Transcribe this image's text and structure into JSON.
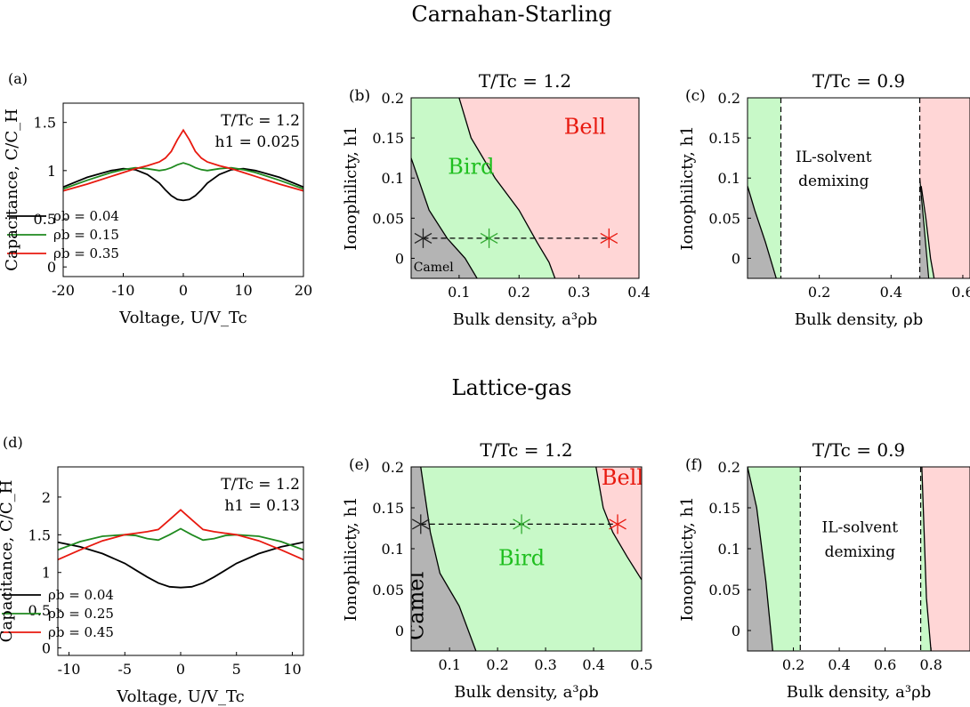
{
  "rows": [
    {
      "title": "Carnahan-Starling"
    },
    {
      "title": "Lattice-gas"
    }
  ],
  "chart_data": [
    {
      "panel": "(a)",
      "type": "line",
      "title": "",
      "xlabel": "Voltage, U/V_Tc",
      "ylabel": "Capacitance, C/C_H",
      "xlim": [
        -20,
        20
      ],
      "ylim": [
        -0.1,
        1.7
      ],
      "xticks": [
        -20,
        -10,
        0,
        10,
        20
      ],
      "yticks": [
        0,
        0.5,
        1,
        1.5
      ],
      "annotations": [
        "T/Tc = 1.2",
        "h1 = 0.025"
      ],
      "legend_position": "lower-left",
      "x": [
        -20,
        -16,
        -12,
        -10,
        -8,
        -6,
        -4,
        -3,
        -2,
        -1,
        0,
        1,
        2,
        3,
        4,
        6,
        8,
        10,
        12,
        16,
        20
      ],
      "series": [
        {
          "name": "ρb = 0.04",
          "color": "#000000",
          "values": [
            0.83,
            0.93,
            1.0,
            1.02,
            1.01,
            0.96,
            0.87,
            0.8,
            0.74,
            0.7,
            0.69,
            0.7,
            0.74,
            0.8,
            0.87,
            0.96,
            1.01,
            1.02,
            1.0,
            0.93,
            0.83
          ]
        },
        {
          "name": "ρb = 0.15",
          "color": "#1f8a1f",
          "values": [
            0.81,
            0.9,
            0.98,
            1.01,
            1.03,
            1.02,
            1.0,
            1.01,
            1.03,
            1.06,
            1.08,
            1.06,
            1.03,
            1.01,
            1.0,
            1.02,
            1.03,
            1.01,
            0.98,
            0.9,
            0.81
          ]
        },
        {
          "name": "ρb = 0.35",
          "color": "#e8190f",
          "values": [
            0.79,
            0.86,
            0.94,
            0.98,
            1.02,
            1.05,
            1.09,
            1.13,
            1.2,
            1.32,
            1.42,
            1.32,
            1.2,
            1.13,
            1.09,
            1.05,
            1.02,
            0.98,
            0.94,
            0.86,
            0.79
          ]
        }
      ]
    },
    {
      "panel": "(b)",
      "type": "area",
      "title": "T/Tc = 1.2",
      "xlabel": "Bulk density, a³ρb",
      "ylabel": "Ionophilicty, h1",
      "xlim": [
        0.02,
        0.4
      ],
      "ylim": [
        -0.025,
        0.2
      ],
      "xticks": [
        0.1,
        0.2,
        0.3,
        0.4
      ],
      "yticks": [
        0,
        0.05,
        0.1,
        0.15,
        0.2
      ],
      "region_labels": [
        {
          "text": "Bell",
          "color": "#e8190f",
          "x": 0.31,
          "y": 0.155
        },
        {
          "text": "Bird",
          "color": "#1fbf1f",
          "x": 0.12,
          "y": 0.105
        },
        {
          "text": "Camel",
          "color": "#000000",
          "x": 0.024,
          "y": -0.016
        }
      ],
      "boundaries": [
        {
          "name": "camel-bird",
          "x": [
            0.02,
            0.05,
            0.08,
            0.11,
            0.13
          ],
          "y": [
            0.125,
            0.06,
            0.025,
            0.0,
            -0.025
          ]
        },
        {
          "name": "bird-bell",
          "x": [
            0.1,
            0.12,
            0.16,
            0.2,
            0.23,
            0.25,
            0.26
          ],
          "y": [
            0.2,
            0.15,
            0.1,
            0.06,
            0.02,
            -0.005,
            -0.025
          ]
        }
      ],
      "markers": [
        {
          "x": 0.04,
          "y": 0.025,
          "color": "#222222"
        },
        {
          "x": 0.15,
          "y": 0.025,
          "color": "#33aa33"
        },
        {
          "x": 0.35,
          "y": 0.025,
          "color": "#e8190f"
        }
      ],
      "dashed_line": {
        "x": [
          0.04,
          0.35
        ],
        "y": [
          0.025,
          0.025
        ]
      }
    },
    {
      "panel": "(c)",
      "type": "area",
      "title": "T/Tc = 0.9",
      "xlabel": "Bulk density, ρb",
      "ylabel": "Ionophilicty, h1",
      "xlim": [
        0.0,
        0.62
      ],
      "ylim": [
        -0.025,
        0.2
      ],
      "xticks": [
        0.2,
        0.4,
        0.6
      ],
      "yticks": [
        0,
        0.05,
        0.1,
        0.15,
        0.2
      ],
      "region_labels": [
        {
          "text": "IL-solvent",
          "color": "#000000",
          "x": 0.24,
          "y": 0.12
        },
        {
          "text": "demixing",
          "color": "#000000",
          "x": 0.24,
          "y": 0.09
        }
      ],
      "demixing_bounds": [
        0.093,
        0.48
      ],
      "boundaries": [
        {
          "name": "left-grey-edge",
          "x": [
            0.0,
            0.02,
            0.05,
            0.08
          ],
          "y": [
            0.09,
            0.06,
            0.02,
            -0.025
          ]
        },
        {
          "name": "right-grey-edge",
          "x": [
            0.48,
            0.49,
            0.5,
            0.505
          ],
          "y": [
            0.1,
            0.05,
            0.0,
            -0.025
          ]
        },
        {
          "name": "right-green-edge",
          "x": [
            0.484,
            0.497,
            0.51,
            0.52
          ],
          "y": [
            0.09,
            0.05,
            0.0,
            -0.025
          ]
        }
      ]
    },
    {
      "panel": "(d)",
      "type": "line",
      "title": "",
      "xlabel": "Voltage, U/V_Tc",
      "ylabel": "Capacitance, C/C_H",
      "xlim": [
        -11,
        11
      ],
      "ylim": [
        -0.1,
        2.4
      ],
      "xticks": [
        -10,
        -5,
        0,
        5,
        10
      ],
      "yticks": [
        0,
        0.5,
        1,
        1.5,
        2
      ],
      "annotations": [
        "T/Tc = 1.2",
        "h1 = 0.13"
      ],
      "legend_position": "lower-left",
      "x": [
        -11,
        -9,
        -7,
        -5,
        -4,
        -3,
        -2,
        -1,
        0,
        1,
        2,
        3,
        4,
        5,
        7,
        9,
        11
      ],
      "series": [
        {
          "name": "ρb = 0.04",
          "color": "#000000",
          "values": [
            1.4,
            1.34,
            1.25,
            1.12,
            1.03,
            0.94,
            0.86,
            0.81,
            0.8,
            0.81,
            0.86,
            0.94,
            1.03,
            1.12,
            1.25,
            1.34,
            1.4
          ]
        },
        {
          "name": "ρb = 0.25",
          "color": "#1f8a1f",
          "values": [
            1.3,
            1.41,
            1.48,
            1.5,
            1.49,
            1.45,
            1.43,
            1.5,
            1.58,
            1.5,
            1.43,
            1.45,
            1.49,
            1.5,
            1.48,
            1.41,
            1.3
          ]
        },
        {
          "name": "ρb = 0.45",
          "color": "#e8190f",
          "values": [
            1.17,
            1.3,
            1.42,
            1.5,
            1.52,
            1.54,
            1.57,
            1.7,
            1.83,
            1.7,
            1.57,
            1.54,
            1.52,
            1.5,
            1.42,
            1.3,
            1.17
          ]
        }
      ]
    },
    {
      "panel": "(e)",
      "type": "area",
      "title": "T/Tc = 1.2",
      "xlabel": "Bulk density, a³ρb",
      "ylabel": "Ionophilicty, h1",
      "xlim": [
        0.02,
        0.5
      ],
      "ylim": [
        -0.025,
        0.2
      ],
      "xticks": [
        0.1,
        0.2,
        0.3,
        0.4,
        0.5
      ],
      "yticks": [
        0,
        0.05,
        0.1,
        0.15,
        0.2
      ],
      "region_labels": [
        {
          "text": "Bell",
          "color": "#e8190f",
          "x": 0.46,
          "y": 0.178
        },
        {
          "text": "Bird",
          "color": "#1fbf1f",
          "x": 0.25,
          "y": 0.08
        },
        {
          "text": "Camel",
          "color": "#000000",
          "x": 0.045,
          "y": 0.03
        }
      ],
      "boundaries": [
        {
          "name": "camel-bird",
          "x": [
            0.04,
            0.05,
            0.06,
            0.08,
            0.12,
            0.155
          ],
          "y": [
            0.2,
            0.16,
            0.12,
            0.07,
            0.03,
            -0.025
          ]
        },
        {
          "name": "bird-bell",
          "x": [
            0.405,
            0.42,
            0.44,
            0.47,
            0.5
          ],
          "y": [
            0.2,
            0.15,
            0.12,
            0.09,
            0.062
          ]
        }
      ],
      "markers": [
        {
          "x": 0.04,
          "y": 0.13,
          "color": "#222222"
        },
        {
          "x": 0.25,
          "y": 0.13,
          "color": "#33aa33"
        },
        {
          "x": 0.45,
          "y": 0.13,
          "color": "#e8190f"
        }
      ],
      "dashed_line": {
        "x": [
          0.04,
          0.45
        ],
        "y": [
          0.13,
          0.13
        ]
      }
    },
    {
      "panel": "(f)",
      "type": "area",
      "title": "T/Tc = 0.9",
      "xlabel": "Bulk density, a³ρb",
      "ylabel": "Ionophilicty, h1",
      "xlim": [
        0.0,
        0.97
      ],
      "ylim": [
        -0.025,
        0.2
      ],
      "xticks": [
        0.2,
        0.4,
        0.6,
        0.8
      ],
      "yticks": [
        0,
        0.05,
        0.1,
        0.15,
        0.2
      ],
      "region_labels": [
        {
          "text": "IL-solvent",
          "color": "#000000",
          "x": 0.49,
          "y": 0.12
        },
        {
          "text": "demixing",
          "color": "#000000",
          "x": 0.49,
          "y": 0.09
        }
      ],
      "demixing_bounds": [
        0.23,
        0.755
      ],
      "boundaries": [
        {
          "name": "left-grey-edge",
          "x": [
            0.0,
            0.04,
            0.08,
            0.11
          ],
          "y": [
            0.2,
            0.15,
            0.06,
            -0.025
          ]
        },
        {
          "name": "right-green-edge",
          "x": [
            0.76,
            0.77,
            0.78,
            0.8
          ],
          "y": [
            0.2,
            0.12,
            0.04,
            -0.025
          ]
        }
      ]
    }
  ]
}
